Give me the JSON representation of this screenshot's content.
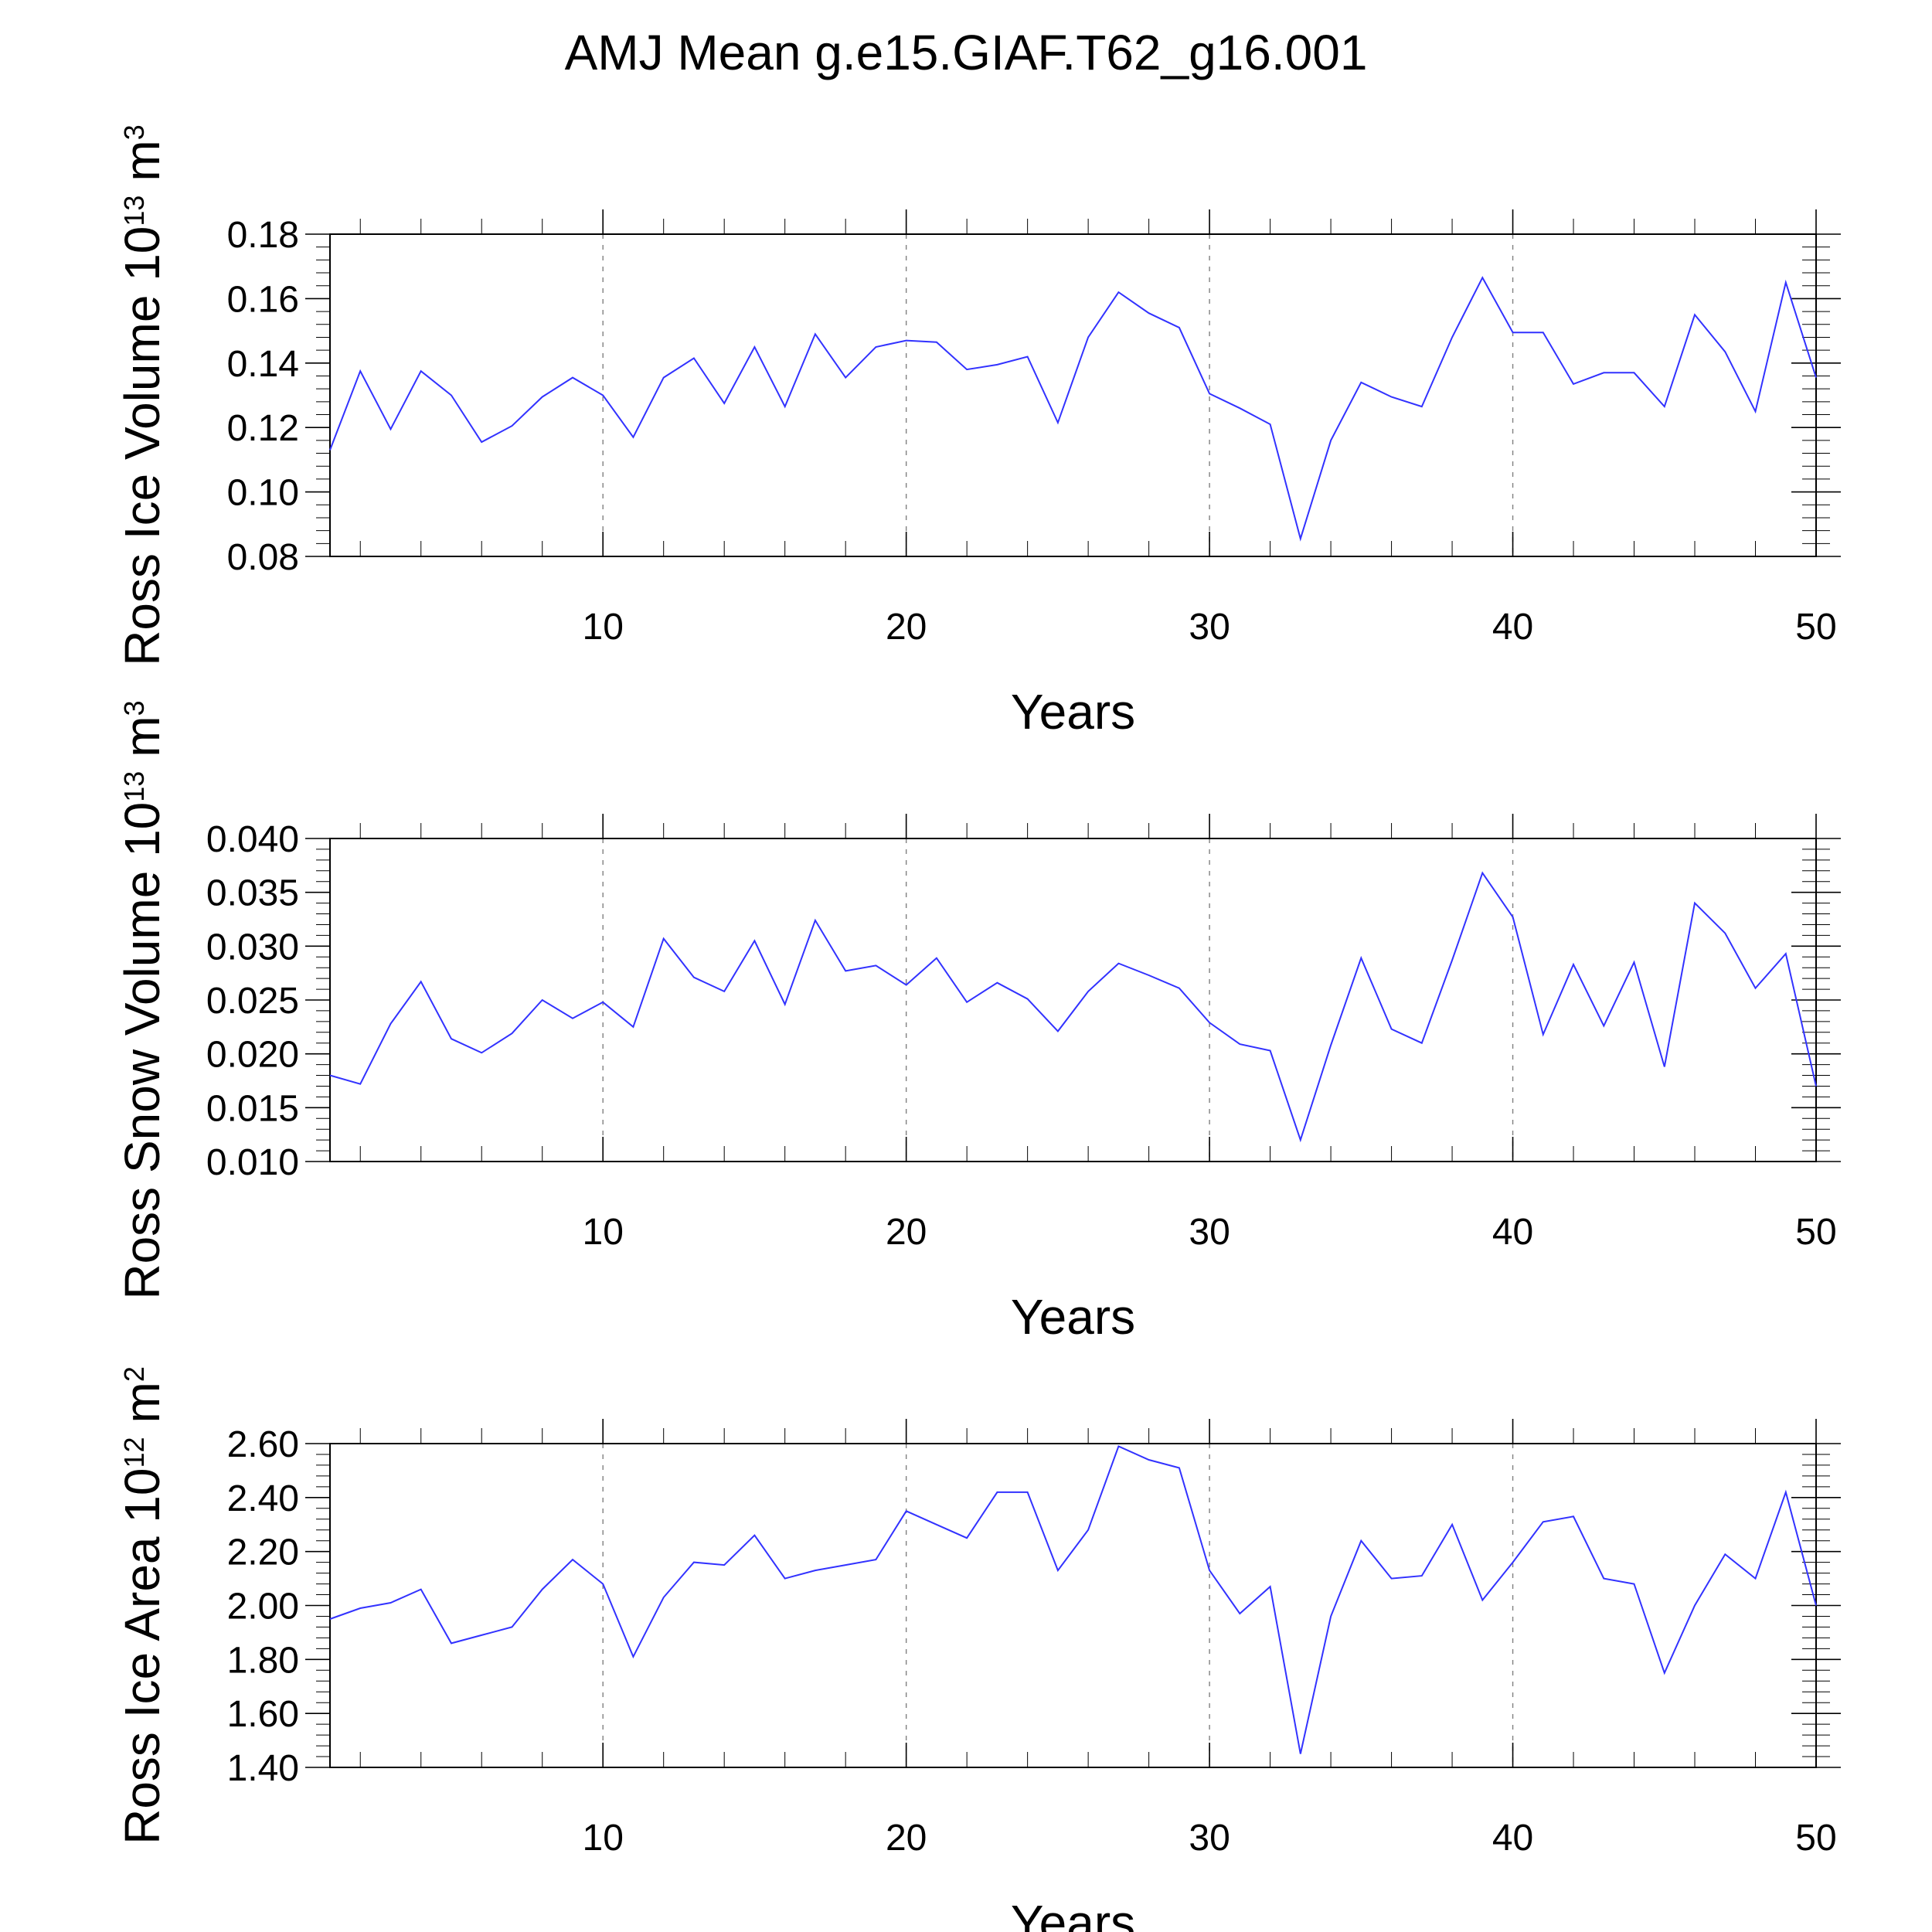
{
  "figure": {
    "title": "AMJ Mean g.e15.GIAF.T62_g16.001"
  },
  "chart_data": [
    {
      "type": "line",
      "xlabel": "Years",
      "ylabel": "Ross Ice Volume 10",
      "ylabel_exp": "13",
      "ylabel_unit": "m",
      "ylabel_unit_exp": "3",
      "xlim": [
        1,
        50
      ],
      "ylim": [
        0.08,
        0.18
      ],
      "xticks": [
        10,
        20,
        30,
        40,
        50
      ],
      "yticks": [
        0.08,
        0.1,
        0.12,
        0.14,
        0.16,
        0.18
      ],
      "ytick_labels": [
        "0.08",
        "0.10",
        "0.12",
        "0.14",
        "0.16",
        "0.18"
      ],
      "grid_x": [
        10,
        20,
        30,
        40
      ],
      "series": [
        {
          "name": "Ross Ice Volume",
          "color": "#3232ff",
          "x": [
            1,
            2,
            3,
            4,
            5,
            6,
            7,
            8,
            9,
            10,
            11,
            12,
            13,
            14,
            15,
            16,
            17,
            18,
            19,
            20,
            21,
            22,
            23,
            24,
            25,
            26,
            27,
            28,
            29,
            30,
            31,
            32,
            33,
            34,
            35,
            36,
            37,
            38,
            39,
            40,
            41,
            42,
            43,
            44,
            45,
            46,
            47,
            48,
            49,
            50
          ],
          "y": [
            0.113,
            0.1375,
            0.1195,
            0.1375,
            0.13,
            0.1155,
            0.1205,
            0.1295,
            0.1355,
            0.13,
            0.117,
            0.1355,
            0.1415,
            0.1275,
            0.145,
            0.1265,
            0.149,
            0.1355,
            0.145,
            0.147,
            0.1465,
            0.138,
            0.1395,
            0.142,
            0.1215,
            0.148,
            0.162,
            0.1555,
            0.151,
            0.1305,
            0.126,
            0.121,
            0.0855,
            0.116,
            0.134,
            0.1295,
            0.1265,
            0.148,
            0.1665,
            0.1495,
            0.1495,
            0.1335,
            0.137,
            0.137,
            0.1265,
            0.155,
            0.1435,
            0.125,
            0.165,
            0.1355
          ]
        }
      ]
    },
    {
      "type": "line",
      "xlabel": "Years",
      "ylabel": "Ross Snow Volume 10",
      "ylabel_exp": "13",
      "ylabel_unit": "m",
      "ylabel_unit_exp": "3",
      "xlim": [
        1,
        50
      ],
      "ylim": [
        0.01,
        0.04
      ],
      "xticks": [
        10,
        20,
        30,
        40,
        50
      ],
      "yticks": [
        0.01,
        0.015,
        0.02,
        0.025,
        0.03,
        0.035,
        0.04
      ],
      "ytick_labels": [
        "0.010",
        "0.015",
        "0.020",
        "0.025",
        "0.030",
        "0.035",
        "0.040"
      ],
      "grid_x": [
        10,
        20,
        30,
        40
      ],
      "series": [
        {
          "name": "Ross Snow Volume",
          "color": "#3232ff",
          "x": [
            1,
            2,
            3,
            4,
            5,
            6,
            7,
            8,
            9,
            10,
            11,
            12,
            13,
            14,
            15,
            16,
            17,
            18,
            19,
            20,
            21,
            22,
            23,
            24,
            25,
            26,
            27,
            28,
            29,
            30,
            31,
            32,
            33,
            34,
            35,
            36,
            37,
            38,
            39,
            40,
            41,
            42,
            43,
            44,
            45,
            46,
            47,
            48,
            49,
            50
          ],
          "y": [
            0.018,
            0.0172,
            0.0228,
            0.0267,
            0.0214,
            0.0201,
            0.0219,
            0.025,
            0.0233,
            0.0248,
            0.0225,
            0.0307,
            0.0271,
            0.0258,
            0.0305,
            0.0246,
            0.0324,
            0.0277,
            0.0282,
            0.0264,
            0.0289,
            0.0248,
            0.0266,
            0.0251,
            0.0221,
            0.0258,
            0.0284,
            0.0273,
            0.0261,
            0.0229,
            0.0209,
            0.0203,
            0.012,
            0.0208,
            0.0289,
            0.0223,
            0.021,
            0.0287,
            0.0368,
            0.0327,
            0.0218,
            0.0283,
            0.0226,
            0.0285,
            0.0188,
            0.034,
            0.0312,
            0.0261,
            0.0293,
            0.017
          ]
        }
      ]
    },
    {
      "type": "line",
      "xlabel": "Years",
      "ylabel": "Ross Ice Area 10",
      "ylabel_exp": "12",
      "ylabel_unit": "m",
      "ylabel_unit_exp": "2",
      "xlim": [
        1,
        50
      ],
      "ylim": [
        1.4,
        2.6
      ],
      "xticks": [
        10,
        20,
        30,
        40,
        50
      ],
      "yticks": [
        1.4,
        1.6,
        1.8,
        2.0,
        2.2,
        2.4,
        2.6
      ],
      "ytick_labels": [
        "1.40",
        "1.60",
        "1.80",
        "2.00",
        "2.20",
        "2.40",
        "2.60"
      ],
      "grid_x": [
        10,
        20,
        30,
        40
      ],
      "series": [
        {
          "name": "Ross Ice Area",
          "color": "#3232ff",
          "x": [
            1,
            2,
            3,
            4,
            5,
            6,
            7,
            8,
            9,
            10,
            11,
            12,
            13,
            14,
            15,
            16,
            17,
            18,
            19,
            20,
            21,
            22,
            23,
            24,
            25,
            26,
            27,
            28,
            29,
            30,
            31,
            32,
            33,
            34,
            35,
            36,
            37,
            38,
            39,
            40,
            41,
            42,
            43,
            44,
            45,
            46,
            47,
            48,
            49,
            50
          ],
          "y": [
            1.95,
            1.99,
            2.01,
            2.06,
            1.86,
            1.89,
            1.92,
            2.06,
            2.17,
            2.08,
            1.81,
            2.03,
            2.16,
            2.15,
            2.26,
            2.1,
            2.13,
            2.15,
            2.17,
            2.35,
            2.3,
            2.25,
            2.42,
            2.42,
            2.13,
            2.28,
            2.59,
            2.54,
            2.51,
            2.13,
            1.97,
            2.07,
            1.45,
            1.96,
            2.24,
            2.1,
            2.11,
            2.3,
            2.02,
            2.16,
            2.31,
            2.33,
            2.1,
            2.08,
            1.75,
            2.0,
            2.19,
            2.1,
            2.42,
            2.0
          ]
        }
      ]
    }
  ]
}
